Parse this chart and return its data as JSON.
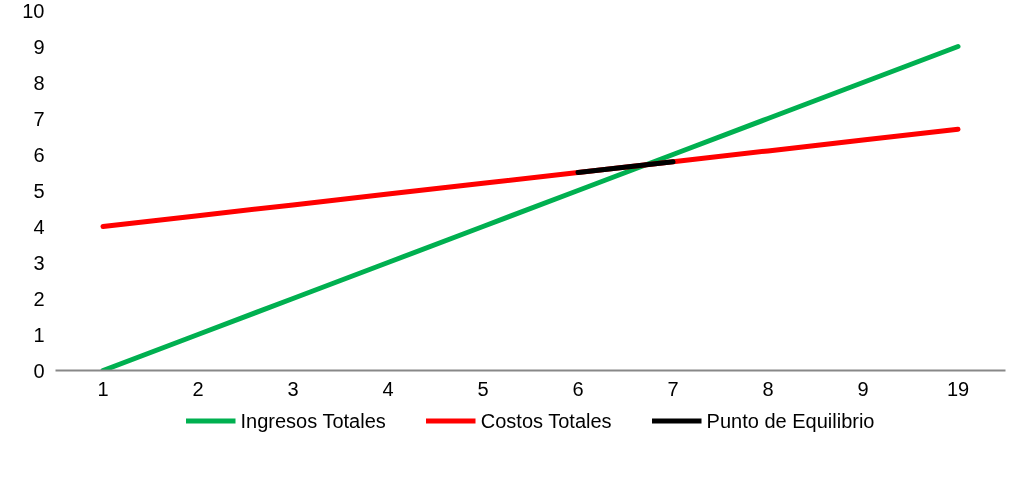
{
  "chart_data": {
    "type": "line",
    "categories": [
      "1",
      "2",
      "3",
      "4",
      "5",
      "6",
      "7",
      "8",
      "9",
      "19"
    ],
    "series": [
      {
        "name": "Ingresos Totales",
        "color": "#00b050",
        "values": [
          0,
          1,
          2,
          3,
          4,
          5,
          6,
          7,
          8,
          9
        ]
      },
      {
        "name": "Costos Totales",
        "color": "#ff0000",
        "values": [
          4,
          4.3,
          4.6,
          4.9,
          5.2,
          5.5,
          5.8,
          6.1,
          6.4,
          6.7
        ]
      },
      {
        "name": "Punto de Equilibrio",
        "color": "#000000",
        "values": [
          null,
          null,
          null,
          null,
          null,
          5.5,
          5.8,
          null,
          null,
          null
        ]
      }
    ],
    "ylim": [
      0,
      10
    ],
    "yticks": [
      0,
      1,
      2,
      3,
      4,
      5,
      6,
      7,
      8,
      9,
      10
    ],
    "grid": false,
    "legend": "bottom",
    "marker": "none",
    "line_style": "solid"
  }
}
